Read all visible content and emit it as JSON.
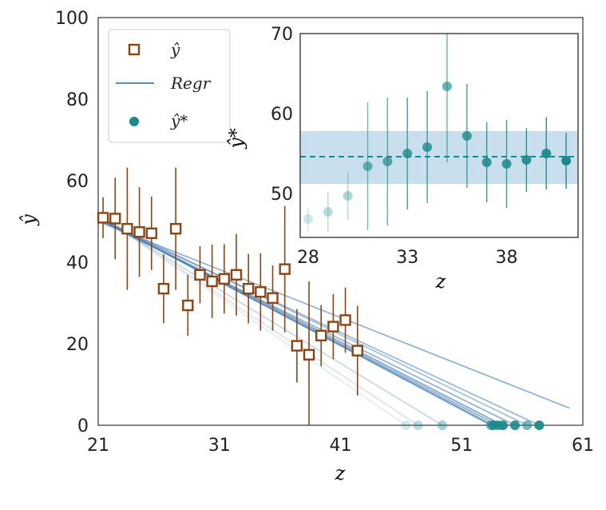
{
  "chart_data": [
    {
      "type": "scatter",
      "xlabel": "z",
      "ylabel": "ŷ",
      "xlim": [
        21,
        61
      ],
      "ylim": [
        0,
        100
      ],
      "xticks": [
        "21",
        "31",
        "41",
        "51",
        "61"
      ],
      "yticks": [
        "0",
        "20",
        "40",
        "60",
        "80",
        "100"
      ],
      "grid": false,
      "legend": {
        "placement": "top-left",
        "entries": [
          {
            "label": "ŷ",
            "marker": "open-square",
            "color": "#8B4513"
          },
          {
            "label": "Regr",
            "marker": "line",
            "color": "#5B8DB8"
          },
          {
            "label": "ŷ*",
            "marker": "filled-circle",
            "color": "#1A8A8A"
          }
        ]
      },
      "series": [
        {
          "name": "ŷ",
          "x": [
            21.4,
            22.4,
            23.4,
            24.4,
            25.4,
            26.4,
            27.4,
            28.4,
            29.4,
            30.4,
            31.4,
            32.4,
            33.4,
            34.4,
            35.4,
            36.4,
            37.4,
            38.4,
            39.4,
            40.4,
            41.4,
            42.4
          ],
          "y": [
            50.9,
            50.7,
            48.2,
            47.4,
            47.1,
            33.5,
            48.2,
            29.4,
            36.9,
            35.3,
            35.9,
            36.9,
            33.5,
            32.7,
            31.2,
            38.3,
            19.5,
            17.3,
            22.0,
            24.2,
            25.8,
            18.3
          ],
          "err": [
            5,
            10,
            15,
            11,
            9,
            8.5,
            15,
            7.5,
            7,
            9,
            8.5,
            10,
            8.5,
            9.5,
            8,
            15.5,
            9,
            18,
            7.5,
            8,
            8,
            11
          ],
          "color": "#8B4513"
        },
        {
          "name": "ŷ*",
          "x": [
            46.4,
            47.4,
            49.4,
            53.4,
            53.6,
            54.0,
            54.4,
            55.4,
            56.4,
            57.4
          ],
          "y": [
            0,
            0,
            0,
            0,
            0,
            0,
            0,
            0,
            0,
            0
          ],
          "opacity": [
            0.2,
            0.3,
            0.4,
            0.6,
            0.9,
            0.85,
            0.95,
            0.9,
            0.6,
            0.95
          ],
          "color": "#1A8A8A"
        }
      ],
      "regression_lines": [
        {
          "x": [
            21.4,
            59.9
          ],
          "y": [
            49.5,
            4.2
          ],
          "opacity": 0.6
        },
        {
          "x": [
            21.4,
            57.4
          ],
          "y": [
            50.0,
            0
          ],
          "opacity": 0.55
        },
        {
          "x": [
            21.4,
            56.4
          ],
          "y": [
            50.5,
            0
          ],
          "opacity": 0.5
        },
        {
          "x": [
            21.4,
            55.4
          ],
          "y": [
            49.8,
            0
          ],
          "opacity": 0.6
        },
        {
          "x": [
            21.4,
            54.4
          ],
          "y": [
            50.3,
            0
          ],
          "opacity": 0.7
        },
        {
          "x": [
            21.4,
            54.0
          ],
          "y": [
            50.1,
            0
          ],
          "opacity": 0.65
        },
        {
          "x": [
            21.4,
            53.6
          ],
          "y": [
            50.2,
            0
          ],
          "opacity": 0.75
        },
        {
          "x": [
            21.4,
            53.4
          ],
          "y": [
            50.4,
            0
          ],
          "opacity": 0.6
        },
        {
          "x": [
            21.4,
            49.4
          ],
          "y": [
            50.6,
            0
          ],
          "opacity": 0.3
        },
        {
          "x": [
            21.4,
            47.4
          ],
          "y": [
            50.8,
            0
          ],
          "opacity": 0.2
        },
        {
          "x": [
            21.4,
            46.4
          ],
          "y": [
            50.9,
            0
          ],
          "opacity": 0.15
        }
      ]
    },
    {
      "type": "scatter",
      "xlabel": "z",
      "ylabel": "ŷ*",
      "xlim": [
        27.6,
        41.6
      ],
      "ylim": [
        44.5,
        70
      ],
      "xticks": [
        "28",
        "33",
        "38"
      ],
      "yticks": [
        "50",
        "60",
        "70"
      ],
      "grid": false,
      "band": {
        "y0": 51.2,
        "y1": 57.8,
        "color": "#9FC5E0"
      },
      "mean_line": {
        "y": 54.6,
        "style": "dashed",
        "color": "#1A8A8A"
      },
      "series": [
        {
          "name": "ŷ*",
          "x": [
            28.0,
            29.0,
            30.0,
            31.0,
            32.0,
            33.0,
            34.0,
            35.0,
            36.0,
            37.0,
            38.0,
            39.0,
            40.0,
            41.0
          ],
          "y": [
            46.8,
            47.7,
            49.7,
            53.4,
            54.0,
            55.0,
            55.8,
            63.4,
            57.2,
            53.9,
            53.7,
            54.2,
            55.0,
            54.1
          ],
          "err": [
            1.5,
            2.5,
            3.0,
            8.0,
            8.0,
            7.0,
            7.0,
            9.5,
            6.5,
            5.0,
            5.5,
            4.0,
            4.5,
            3.5
          ],
          "opacity": [
            0.2,
            0.3,
            0.35,
            0.6,
            0.7,
            0.8,
            0.8,
            0.65,
            0.8,
            0.85,
            0.85,
            0.9,
            0.95,
            1.0
          ],
          "color": "#1A8A8A"
        }
      ]
    }
  ]
}
